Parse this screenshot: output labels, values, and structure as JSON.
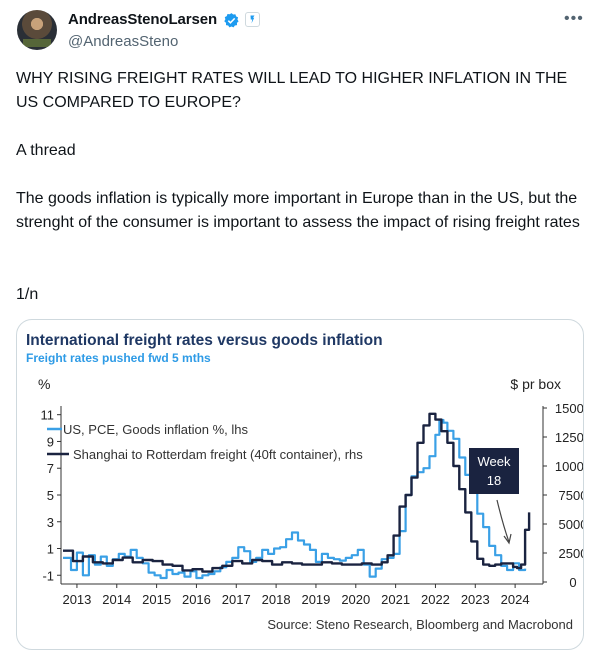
{
  "tweet": {
    "display_name": "AndreasStenoLarsen",
    "handle": "@AndreasSteno",
    "headline": "WHY RISING FREIGHT RATES WILL LEAD TO HIGHER INFLATION IN THE US COMPARED TO EUROPE?",
    "thread_label": "A thread",
    "body": "The goods inflation is typically more important in Europe than in the US, but the strenght of the consumer is important to assess the impact of rising freight rates",
    "counter": "1/n"
  },
  "icons": {
    "verified": "verified-badge-icon",
    "affiliate": "affiliate-badge-icon",
    "more": "more-options-icon"
  },
  "colors": {
    "us_line": "#3aa0e6",
    "freight_line": "#1a2340",
    "title": "#1f3864",
    "subtitle": "#2e9be6"
  },
  "chart_data": {
    "type": "line",
    "title": "International freight rates versus goods inflation",
    "subtitle": "Freight rates pushed fwd 5 mths",
    "left_unit": "%",
    "right_unit": "$ pr box",
    "left_ticks": [
      "11",
      "9",
      "7",
      "5",
      "3",
      "1",
      "-1"
    ],
    "right_ticks": [
      "15000",
      "12500",
      "10000",
      "7500",
      "5000",
      "2500",
      "0"
    ],
    "x_ticks": [
      "2013",
      "2014",
      "2015",
      "2016",
      "2017",
      "2018",
      "2019",
      "2020",
      "2021",
      "2022",
      "2023",
      "2024"
    ],
    "ylim_left": [
      -1.5,
      11.5
    ],
    "ylim_right": [
      0,
      15000
    ],
    "xlim": [
      2012.6,
      2024.7
    ],
    "legend_position": "top-left",
    "grid": false,
    "annotation": {
      "label_line1": "Week",
      "label_line2": "18"
    },
    "source": "Source: Steno Research, Bloomberg and Macrobond",
    "series": [
      {
        "name": "US, PCE, Goods inflation %, lhs",
        "axis": "left",
        "color": "#3aa0e6",
        "x": [
          2012.65,
          2012.85,
          2013.0,
          2013.15,
          2013.3,
          2013.45,
          2013.6,
          2013.75,
          2013.9,
          2014.05,
          2014.2,
          2014.35,
          2014.5,
          2014.65,
          2014.8,
          2014.95,
          2015.1,
          2015.25,
          2015.4,
          2015.55,
          2015.7,
          2015.85,
          2016.0,
          2016.15,
          2016.3,
          2016.45,
          2016.6,
          2016.75,
          2016.9,
          2017.05,
          2017.2,
          2017.35,
          2017.5,
          2017.65,
          2017.8,
          2017.95,
          2018.1,
          2018.25,
          2018.4,
          2018.55,
          2018.7,
          2018.85,
          2019.0,
          2019.15,
          2019.3,
          2019.45,
          2019.6,
          2019.75,
          2019.9,
          2020.05,
          2020.2,
          2020.35,
          2020.5,
          2020.65,
          2020.8,
          2020.95,
          2021.1,
          2021.25,
          2021.4,
          2021.55,
          2021.7,
          2021.85,
          2022.0,
          2022.1,
          2022.2,
          2022.3,
          2022.45,
          2022.6,
          2022.75,
          2022.9,
          2023.05,
          2023.2,
          2023.35,
          2023.5,
          2023.65,
          2023.8,
          2023.95,
          2024.1,
          2024.25
        ],
        "y": [
          0.3,
          -0.6,
          0.7,
          -1.0,
          0.5,
          -0.2,
          0.4,
          -0.3,
          0.2,
          0.6,
          0.4,
          0.9,
          0.3,
          -0.1,
          -0.8,
          -1.0,
          -1.2,
          -0.6,
          -0.9,
          -0.8,
          -1.1,
          -0.7,
          -1.2,
          -1.0,
          -0.9,
          -0.7,
          -0.4,
          0.0,
          0.3,
          1.1,
          0.8,
          0.0,
          0.3,
          0.9,
          0.6,
          1.0,
          1.1,
          1.7,
          2.2,
          1.6,
          1.3,
          0.9,
          0.0,
          0.6,
          0.3,
          0.2,
          0.1,
          0.3,
          0.5,
          0.9,
          -0.2,
          -1.1,
          -0.5,
          0.2,
          0.3,
          0.6,
          2.3,
          5.0,
          6.4,
          6.7,
          7.0,
          7.9,
          9.5,
          10.6,
          10.4,
          9.8,
          9.2,
          7.8,
          6.5,
          5.3,
          3.6,
          2.6,
          1.2,
          0.5,
          -0.3,
          -0.6,
          -0.1,
          -0.6,
          -0.5
        ]
      },
      {
        "name": "Shanghai to Rotterdam freight (40ft container), rhs",
        "axis": "right",
        "color": "#1a2340",
        "x": [
          2012.65,
          2012.9,
          2013.15,
          2013.4,
          2013.65,
          2013.9,
          2014.15,
          2014.4,
          2014.65,
          2014.9,
          2015.15,
          2015.4,
          2015.65,
          2015.9,
          2016.15,
          2016.4,
          2016.65,
          2016.9,
          2017.15,
          2017.4,
          2017.65,
          2017.9,
          2018.15,
          2018.4,
          2018.65,
          2018.9,
          2019.15,
          2019.4,
          2019.65,
          2019.9,
          2020.15,
          2020.4,
          2020.65,
          2020.8,
          2020.95,
          2021.1,
          2021.25,
          2021.4,
          2021.55,
          2021.7,
          2021.85,
          2022.0,
          2022.15,
          2022.3,
          2022.45,
          2022.6,
          2022.75,
          2022.9,
          2023.05,
          2023.2,
          2023.35,
          2023.5,
          2023.65,
          2023.8,
          2023.95,
          2024.05,
          2024.15,
          2024.25,
          2024.35
        ],
        "y": [
          2700,
          1800,
          2200,
          1700,
          1600,
          1900,
          2100,
          1700,
          1900,
          1800,
          1500,
          1400,
          1000,
          1100,
          900,
          1200,
          1400,
          1800,
          1600,
          1900,
          1800,
          1500,
          1700,
          1600,
          1500,
          1500,
          1700,
          1600,
          1500,
          1500,
          1600,
          1500,
          1700,
          2300,
          4000,
          6500,
          7500,
          9000,
          12000,
          13500,
          14500,
          14000,
          13000,
          12000,
          10000,
          8000,
          6000,
          3500,
          2000,
          1500,
          1400,
          1500,
          1600,
          1600,
          1300,
          1200,
          1500,
          4500,
          6000
        ]
      }
    ]
  }
}
